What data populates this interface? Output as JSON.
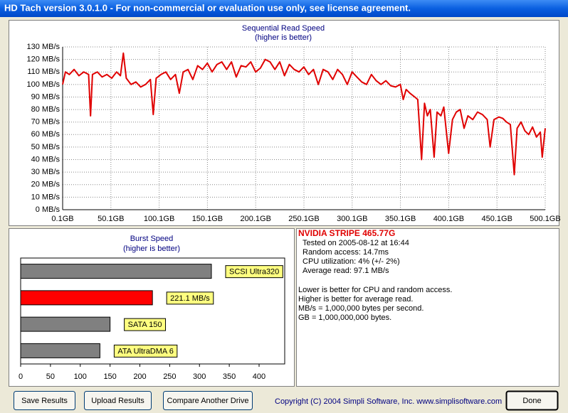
{
  "window": {
    "title": "HD Tach version 3.0.1.0  - For non-commercial or evaluation use only, see license agreement."
  },
  "chart_data": [
    {
      "type": "line",
      "title": "Sequential Read Speed",
      "subtitle": "(higher is better)",
      "color": "#e00000",
      "grid": true,
      "xlim": [
        0.1,
        500.1
      ],
      "xticks": [
        {
          "value": 0.1,
          "label": "0.1GB"
        },
        {
          "value": 50.1,
          "label": "50.1GB"
        },
        {
          "value": 100.1,
          "label": "100.1GB"
        },
        {
          "value": 150.1,
          "label": "150.1GB"
        },
        {
          "value": 200.1,
          "label": "200.1GB"
        },
        {
          "value": 250.1,
          "label": "250.1GB"
        },
        {
          "value": 300.1,
          "label": "300.1GB"
        },
        {
          "value": 350.1,
          "label": "350.1GB"
        },
        {
          "value": 400.1,
          "label": "400.1GB"
        },
        {
          "value": 450.1,
          "label": "450.1GB"
        },
        {
          "value": 500.1,
          "label": "500.1GB"
        }
      ],
      "ylim": [
        0,
        130
      ],
      "yticks": [
        {
          "value": 0,
          "label": "0 MB/s"
        },
        {
          "value": 10,
          "label": "10 MB/s"
        },
        {
          "value": 20,
          "label": "20 MB/s"
        },
        {
          "value": 30,
          "label": "30 MB/s"
        },
        {
          "value": 40,
          "label": "40 MB/s"
        },
        {
          "value": 50,
          "label": "50 MB/s"
        },
        {
          "value": 60,
          "label": "60 MB/s"
        },
        {
          "value": 70,
          "label": "70 MB/s"
        },
        {
          "value": 80,
          "label": "80 MB/s"
        },
        {
          "value": 90,
          "label": "90 MB/s"
        },
        {
          "value": 100,
          "label": "100 MB/s"
        },
        {
          "value": 110,
          "label": "110 MB/s"
        },
        {
          "value": 120,
          "label": "120 MB/s"
        },
        {
          "value": 130,
          "label": "130 MB/s"
        }
      ],
      "x": [
        0.1,
        3,
        7,
        12,
        17,
        22,
        27,
        29,
        31,
        36,
        41,
        46,
        51,
        56,
        60,
        63,
        66,
        71,
        76,
        81,
        86,
        91,
        94,
        97,
        102,
        107,
        112,
        117,
        121,
        125,
        130,
        135,
        140,
        145,
        150,
        155,
        160,
        165,
        170,
        175,
        180,
        185,
        190,
        195,
        200,
        205,
        210,
        215,
        220,
        225,
        230,
        235,
        240,
        245,
        250,
        255,
        260,
        265,
        270,
        275,
        280,
        285,
        290,
        295,
        300,
        305,
        310,
        315,
        320,
        325,
        330,
        335,
        340,
        345,
        350,
        353,
        356,
        360,
        365,
        368,
        372,
        375,
        378,
        381,
        385,
        388,
        392,
        395,
        400,
        404,
        408,
        412,
        416,
        420,
        425,
        430,
        435,
        440,
        443,
        447,
        452,
        456,
        460,
        464,
        468,
        471,
        475,
        479,
        483,
        487,
        491,
        495,
        497,
        500.1
      ],
      "values": [
        100,
        110,
        108,
        112,
        107,
        110,
        108,
        75,
        108,
        110,
        106,
        108,
        105,
        110,
        107,
        125,
        105,
        100,
        102,
        98,
        100,
        104,
        76,
        105,
        108,
        110,
        104,
        108,
        93,
        110,
        112,
        104,
        115,
        112,
        117,
        110,
        116,
        118,
        112,
        118,
        106,
        115,
        114,
        118,
        110,
        113,
        120,
        118,
        112,
        118,
        107,
        116,
        112,
        110,
        114,
        108,
        112,
        100,
        112,
        110,
        104,
        112,
        108,
        100,
        110,
        106,
        102,
        100,
        108,
        103,
        100,
        103,
        99,
        98,
        100,
        88,
        96,
        93,
        90,
        88,
        40,
        85,
        75,
        80,
        42,
        78,
        75,
        82,
        45,
        72,
        78,
        80,
        65,
        75,
        72,
        78,
        76,
        72,
        50,
        72,
        74,
        73,
        70,
        68,
        28,
        65,
        70,
        63,
        60,
        66,
        58,
        62,
        42,
        65
      ]
    },
    {
      "type": "bar",
      "orientation": "horizontal",
      "title": "Burst Speed",
      "subtitle": "(higher is better)",
      "grid": false,
      "categories": [
        "SCSI Ultra320",
        null,
        "SATA 150",
        "ATA UltraDMA 6"
      ],
      "values": [
        320,
        221.1,
        150,
        133
      ],
      "value_labels": [
        null,
        "221.1 MB/s",
        null,
        null
      ],
      "colors": [
        "#808080",
        "#ff0000",
        "#808080",
        "#808080"
      ],
      "xlim": [
        0,
        443
      ],
      "xticks": [
        0,
        50,
        100,
        150,
        200,
        250,
        300,
        350,
        400
      ]
    }
  ],
  "info": {
    "title": "NVIDIA STRIPE 465.77G",
    "lines": [
      "Tested on 2005-08-12 at 16:44",
      "Random access: 14.7ms",
      "CPU utilization: 4% (+/- 2%)",
      "Average read: 97.1 MB/s"
    ],
    "notes": [
      "Lower is better for CPU and random access.",
      "Higher is better for average read.",
      "MB/s = 1,000,000 bytes per second.",
      "GB = 1,000,000,000 bytes."
    ]
  },
  "buttons": [
    "Save Results",
    "Upload Results",
    "Compare Another Drive",
    "Done"
  ],
  "copyright": "Copyright (C) 2004 Simpli Software, Inc. www.simplisoftware.com"
}
